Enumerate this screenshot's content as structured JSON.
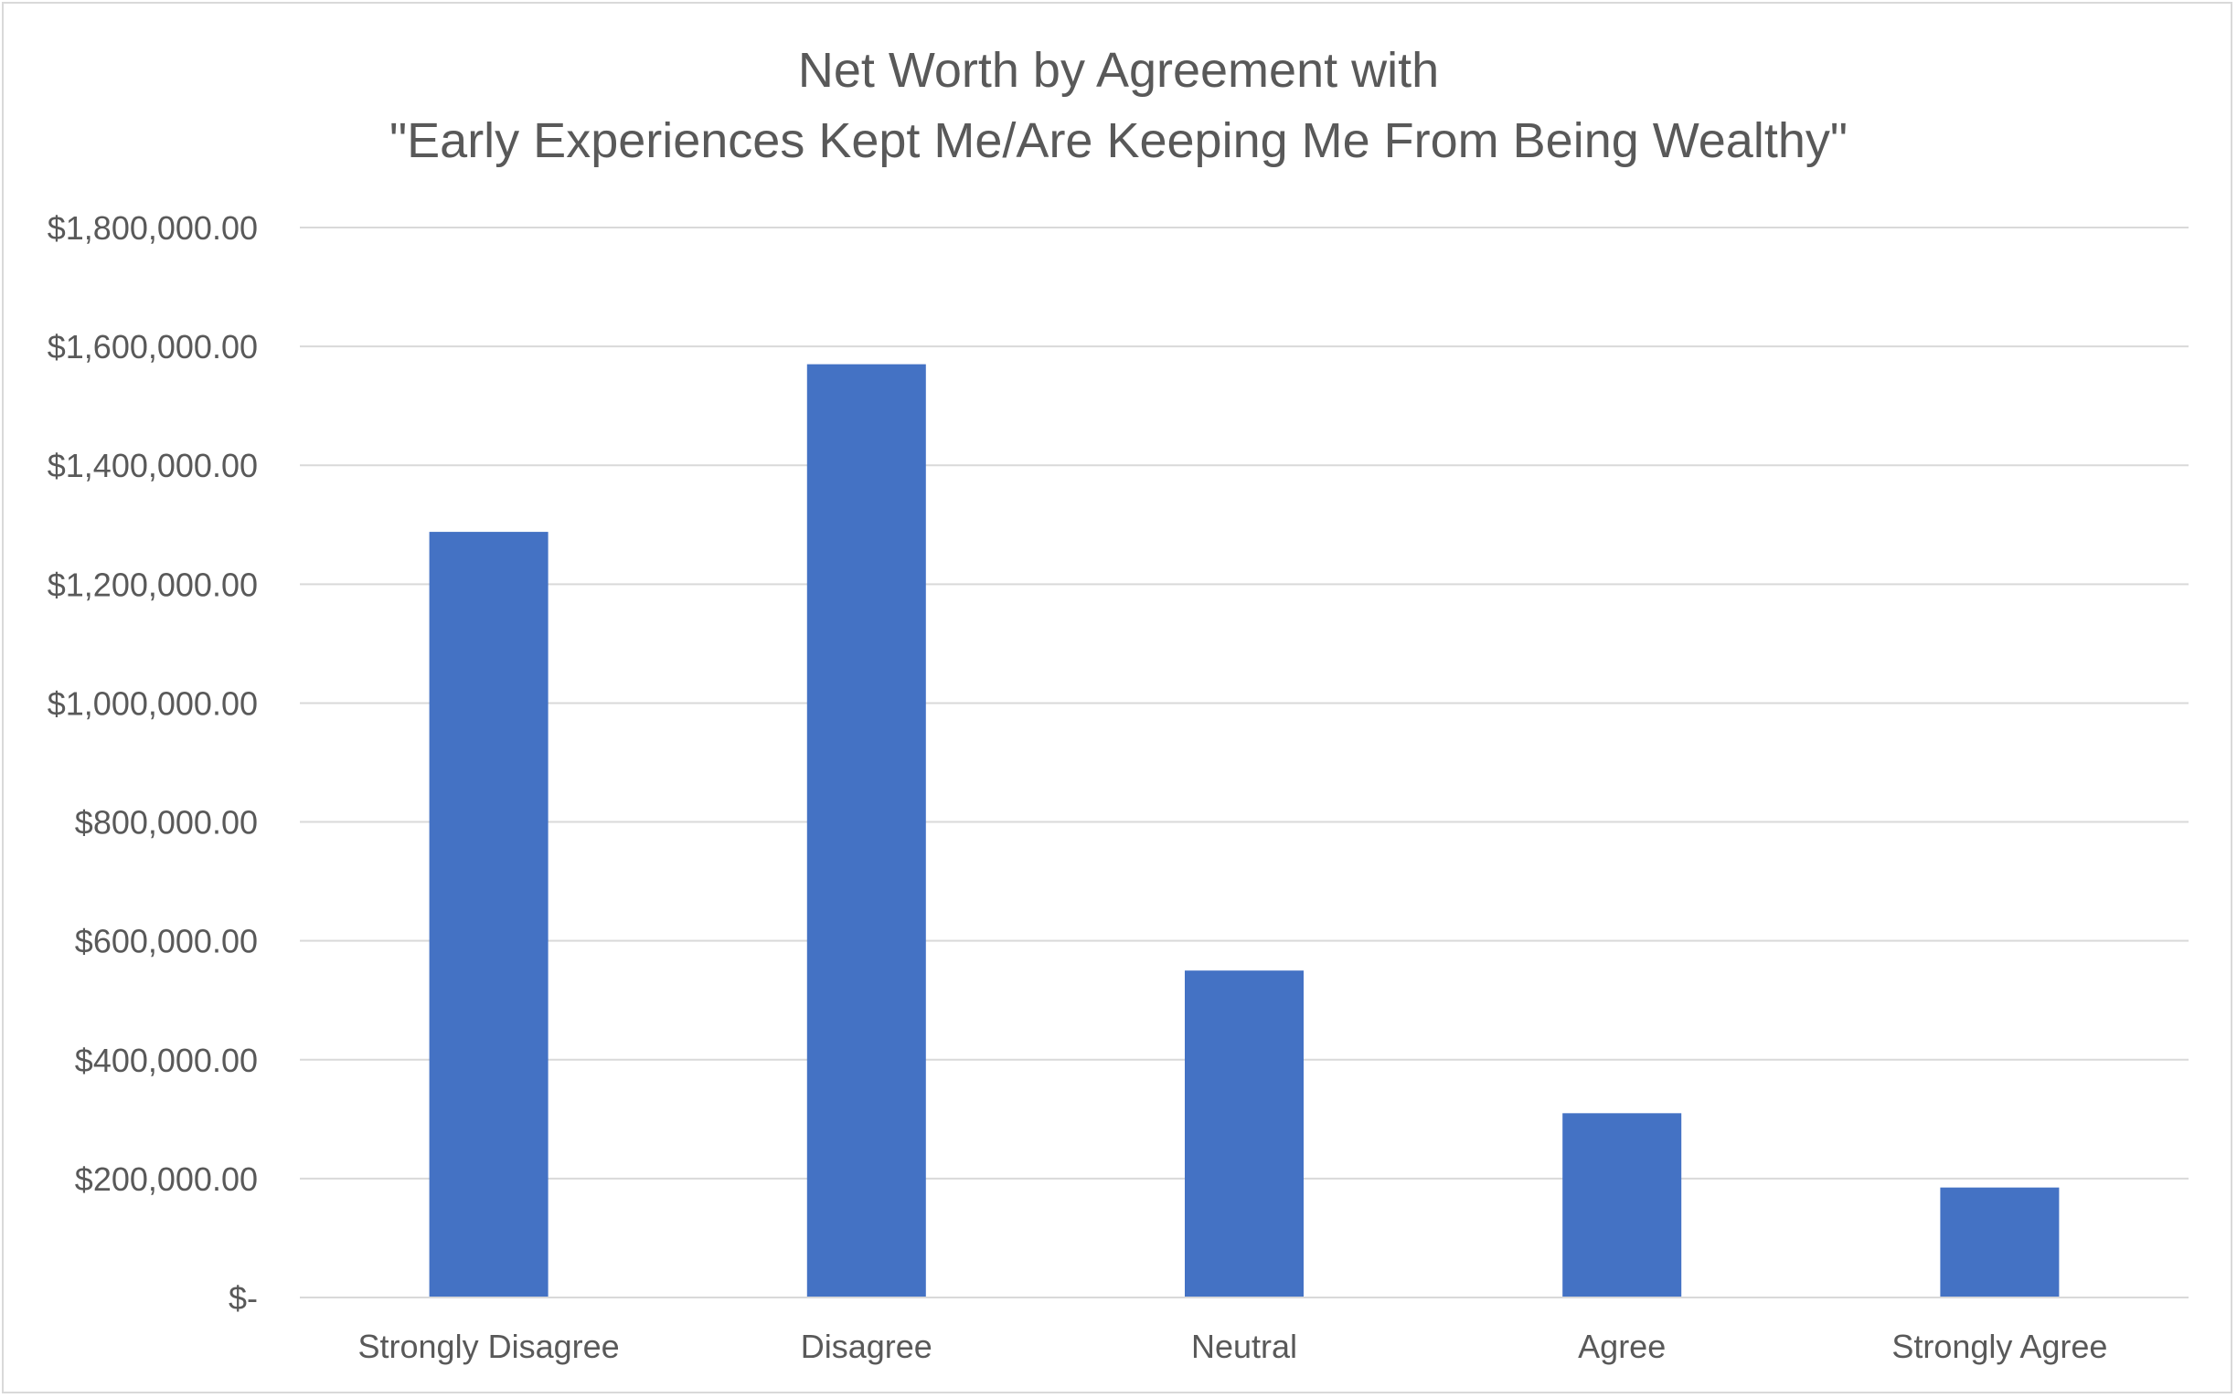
{
  "chart_data": {
    "type": "bar",
    "title": [
      "Net Worth by Agreement with",
      "\"Early Experiences Kept Me/Are Keeping Me From Being Wealthy\""
    ],
    "xlabel": "",
    "ylabel": "",
    "categories": [
      "Strongly Disagree",
      "Disagree",
      "Neutral",
      "Agree",
      "Strongly Agree"
    ],
    "series": [
      {
        "values": [
          1288000,
          1570000,
          550000,
          310000,
          185000
        ]
      }
    ],
    "ylim": [
      0,
      1800000
    ],
    "y_ticks": [
      0,
      200000,
      400000,
      600000,
      800000,
      1000000,
      1200000,
      1400000,
      1600000,
      1800000
    ],
    "y_tick_labels": [
      "$-",
      "$200,000.00",
      "$400,000.00",
      "$600,000.00",
      "$800,000.00",
      "$1,000,000.00",
      "$1,200,000.00",
      "$1,400,000.00",
      "$1,600,000.00",
      "$1,800,000.00"
    ],
    "grid": true,
    "legend": "none",
    "colors": {
      "bar": "#4472c4",
      "grid": "#d9d9d9",
      "text": "#595959"
    }
  }
}
